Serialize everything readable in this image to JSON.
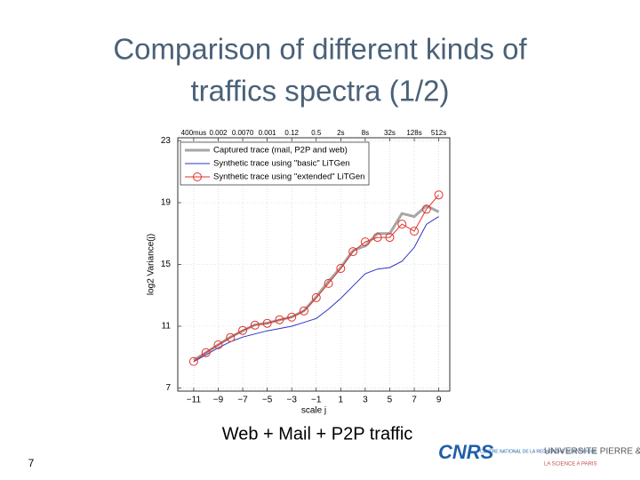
{
  "slide": {
    "title_lines": [
      "Comparison of different kinds of",
      "traffics spectra (1/2)"
    ],
    "caption": "Web + Mail + P2P traffic",
    "page_number": "7",
    "logos": [
      {
        "name": "CNRS",
        "subtitle": "CENTRE NATIONAL DE LA RECHERCHE SCIENTIFIQUE"
      },
      {
        "name": "UNIVERSITE PIERRE & MARIE CURIE",
        "subtitle": "LA SCIENCE A PARIS"
      }
    ]
  },
  "chart_data": {
    "type": "line",
    "x_label": "scale j",
    "y_label": "log2 Variance(j)",
    "x": [
      -11,
      -10,
      -9,
      -8,
      -7,
      -6,
      -5,
      -4,
      -3,
      -2,
      -1,
      0,
      1,
      2,
      3,
      4,
      5,
      6,
      7,
      8,
      9
    ],
    "series": [
      {
        "name": "Captured trace (mail, P2P and web)",
        "color": "#a6a6a6",
        "width": 3,
        "values": [
          8.8,
          9.3,
          9.8,
          10.3,
          10.7,
          11.1,
          11.2,
          11.4,
          11.6,
          12.0,
          12.9,
          13.9,
          14.8,
          15.9,
          16.2,
          17.0,
          17.0,
          18.3,
          18.1,
          18.8,
          18.4
        ]
      },
      {
        "name": "Synthetic trace using \"basic\" LiTGen",
        "color": "#2b35c2",
        "width": 1,
        "values": [
          8.7,
          9.15,
          9.6,
          10.0,
          10.3,
          10.5,
          10.7,
          10.85,
          11.0,
          11.25,
          11.5,
          12.1,
          12.8,
          13.6,
          14.4,
          14.7,
          14.8,
          15.2,
          16.1,
          17.6,
          18.1
        ]
      },
      {
        "name": "Synthetic trace using \"extended\" LiTGen",
        "color": "#e0322a",
        "width": 1,
        "marker": "circle",
        "values": [
          8.72,
          9.29,
          9.8,
          10.27,
          10.73,
          11.07,
          11.19,
          11.42,
          11.59,
          11.99,
          12.85,
          13.77,
          14.74,
          15.83,
          16.46,
          16.75,
          16.75,
          17.61,
          17.15,
          18.58,
          19.5
        ]
      }
    ],
    "xlim": [
      -12.3,
      9.9
    ],
    "ylim": [
      6.8,
      23.2
    ],
    "xticks": [
      {
        "value": -11,
        "label": "−11"
      },
      {
        "value": -9,
        "label": "−9"
      },
      {
        "value": -7,
        "label": "−7"
      },
      {
        "value": -5,
        "label": "−5"
      },
      {
        "value": -3,
        "label": "−3"
      },
      {
        "value": -1,
        "label": "−1"
      },
      1,
      3,
      5,
      7,
      9
    ],
    "x2ticks": [
      {
        "value": -11,
        "label": "400mus"
      },
      {
        "value": -9,
        "label": "0.002"
      },
      {
        "value": -7,
        "label": "0.0070"
      },
      {
        "value": -5,
        "label": "0.001"
      },
      {
        "value": -3,
        "label": "0.12"
      },
      {
        "value": -1,
        "label": "0.5"
      },
      {
        "value": 1,
        "label": "2s"
      },
      {
        "value": 3,
        "label": "8s"
      },
      {
        "value": 5,
        "label": "32s"
      },
      {
        "value": 7,
        "label": "128s"
      },
      {
        "value": 9,
        "label": "512s"
      }
    ],
    "yticks": [
      7,
      11,
      15,
      19,
      23
    ],
    "grid": true,
    "legend": "upper left"
  }
}
